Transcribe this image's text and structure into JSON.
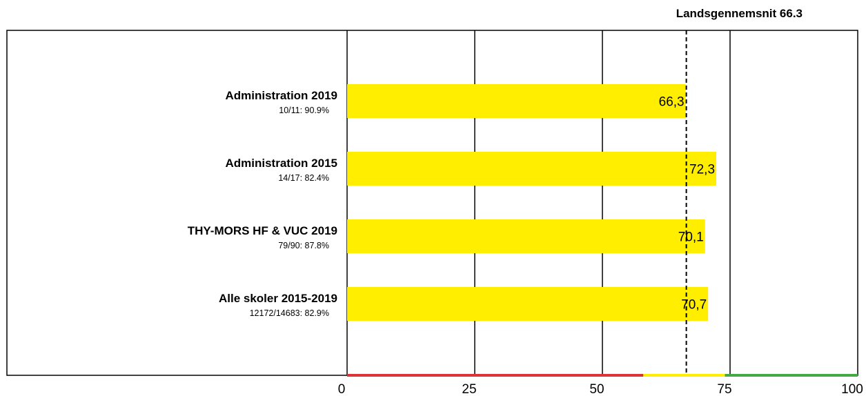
{
  "chart_data": {
    "type": "bar",
    "orientation": "horizontal",
    "reference_line_label": "Landsgennemsnit 66.3",
    "reference_value": 66.3,
    "categories": [
      {
        "label": "Administration 2019",
        "sub": "10/11: 90.9%",
        "value": 66.3,
        "value_label": "66,3"
      },
      {
        "label": "Administration 2015",
        "sub": "14/17: 82.4%",
        "value": 72.3,
        "value_label": "72,3"
      },
      {
        "label": "THY-MORS HF & VUC 2019",
        "sub": "79/90: 87.8%",
        "value": 70.1,
        "value_label": "70,1"
      },
      {
        "label": "Alle skoler 2015-2019",
        "sub": "12172/14683: 82.9%",
        "value": 70.7,
        "value_label": "70,7"
      }
    ],
    "xlim": [
      0,
      100
    ],
    "xticks": [
      0,
      25,
      50,
      75,
      100
    ],
    "grid": true,
    "bar_color": "#ffee00",
    "baseline_bands": [
      {
        "from": 0,
        "to": 58,
        "color": "#dd3333"
      },
      {
        "from": 58,
        "to": 74,
        "color": "#ffee00"
      },
      {
        "from": 74,
        "to": 100,
        "color": "#44aa44"
      }
    ]
  }
}
